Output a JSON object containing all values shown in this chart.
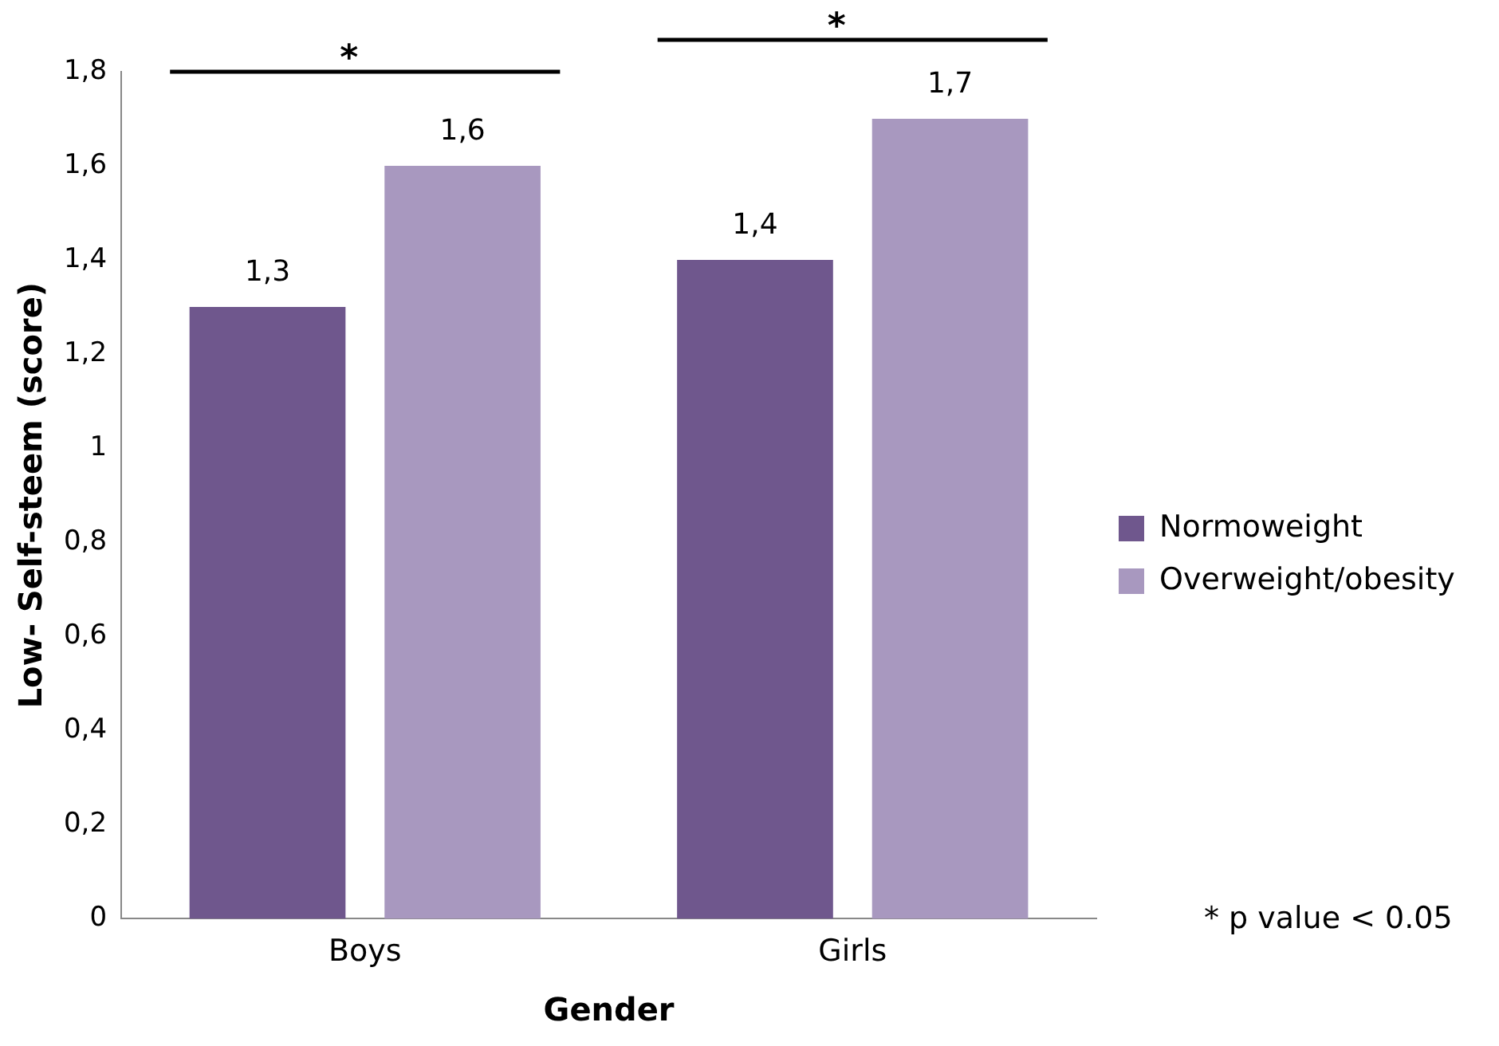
{
  "chart_data": {
    "type": "bar",
    "xlabel": "Gender",
    "ylabel": "Low- Self-steem (score)",
    "categories": [
      "Boys",
      "Girls"
    ],
    "series": [
      {
        "name": "Normoweight",
        "color": "#6f578d",
        "values": [
          1.3,
          1.4
        ],
        "value_labels": [
          "1,3",
          "1,4"
        ]
      },
      {
        "name": "Overweight/obesity",
        "color": "#a898bf",
        "values": [
          1.6,
          1.7
        ],
        "value_labels": [
          "1,6",
          "1,7"
        ]
      }
    ],
    "ylim": [
      0,
      1.8
    ],
    "yticks": [
      0,
      {
        "value": 0.2,
        "label": "0,2"
      },
      {
        "value": 0.4,
        "label": "0,4"
      },
      {
        "value": 0.6,
        "label": "0,6"
      },
      {
        "value": 0.8,
        "label": "0,8"
      },
      1,
      {
        "value": 1.2,
        "label": "1,2"
      },
      {
        "value": 1.4,
        "label": "1,4"
      },
      {
        "value": 1.6,
        "label": "1,6"
      },
      {
        "value": 1.8,
        "label": "1,8"
      }
    ],
    "annotations": [
      "*",
      "*",
      "* p value < 0.05"
    ],
    "grid": false,
    "legend": "right"
  }
}
